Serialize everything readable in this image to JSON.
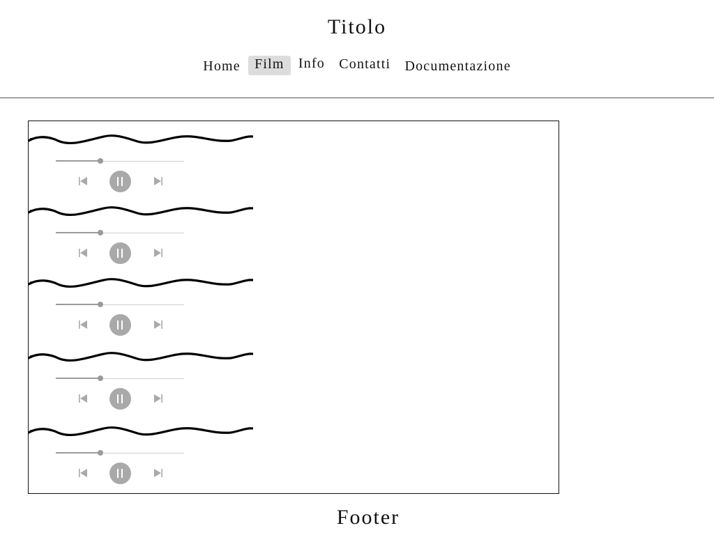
{
  "header": {
    "title": "Titolo"
  },
  "nav": {
    "items": [
      {
        "label": "Home",
        "active": false
      },
      {
        "label": "Film",
        "active": true
      },
      {
        "label": "Info",
        "active": false
      },
      {
        "label": "Contatti",
        "active": false
      },
      {
        "label": "Documentazione",
        "active": false
      }
    ]
  },
  "players": [
    {
      "progress": 0.35,
      "state": "playing",
      "icons": {
        "prev": "skip-back-icon",
        "toggle": "pause-icon",
        "next": "skip-forward-icon"
      }
    },
    {
      "progress": 0.35,
      "state": "playing",
      "icons": {
        "prev": "skip-back-icon",
        "toggle": "pause-icon",
        "next": "skip-forward-icon"
      }
    },
    {
      "progress": 0.35,
      "state": "playing",
      "icons": {
        "prev": "skip-back-icon",
        "toggle": "pause-icon",
        "next": "skip-forward-icon"
      }
    },
    {
      "progress": 0.35,
      "state": "playing",
      "icons": {
        "prev": "skip-back-icon",
        "toggle": "pause-icon",
        "next": "skip-forward-icon"
      }
    },
    {
      "progress": 0.35,
      "state": "playing",
      "icons": {
        "prev": "skip-back-icon",
        "toggle": "pause-icon",
        "next": "skip-forward-icon"
      }
    }
  ],
  "colors": {
    "nav_active_bg": "#dcdcdc",
    "player_control": "#a9a9a9",
    "wave_stroke": "#000000"
  },
  "footer": {
    "text": "Footer"
  }
}
